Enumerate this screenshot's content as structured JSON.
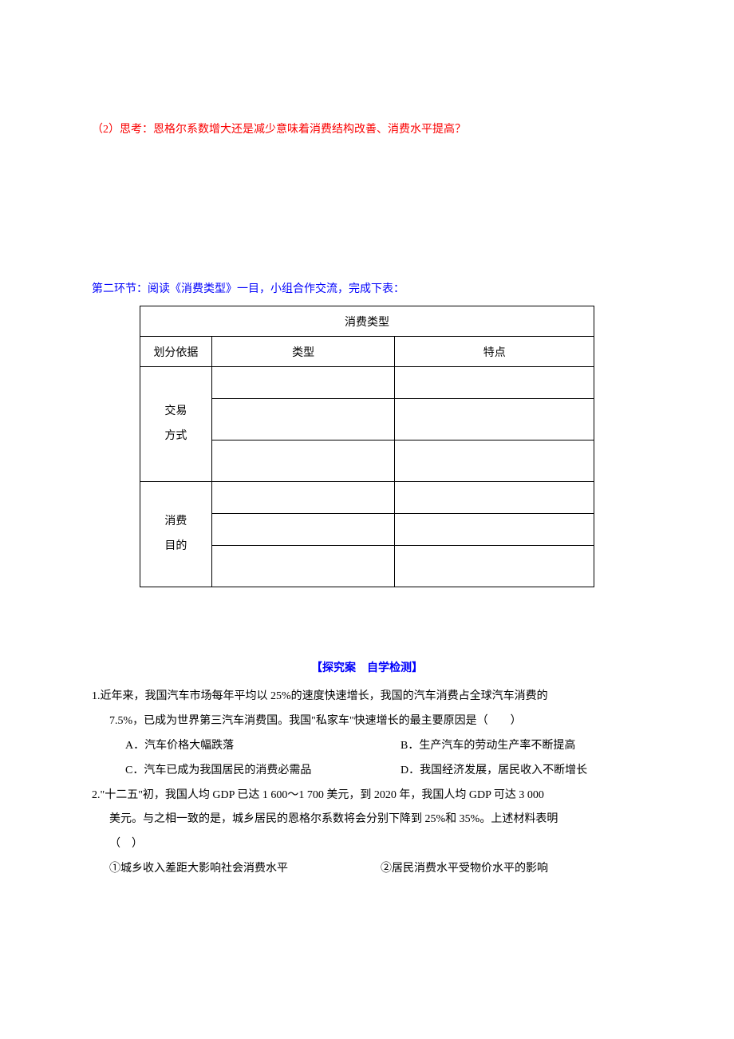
{
  "q1_part2": "（2）思考：恩格尔系数增大还是减少意味着消费结构改善、消费水平提高？",
  "section2_header": "第二环节：阅读《消费类型》一目，小组合作交流，完成下表：",
  "table": {
    "title": "消费类型",
    "header_basis": "划分依据",
    "header_type": "类型",
    "header_feature": "特点",
    "row1_basis_line1": "交易",
    "row1_basis_line2": "方式",
    "row2_basis_line1": "消费",
    "row2_basis_line2": "目的"
  },
  "inquiry_title": "【探究案　自学检测】",
  "q1": {
    "intro_line1": "1.近年来，我国汽车市场每年平均以 25%的速度快速增长，我国的汽车消费占全球汽车消费的",
    "intro_line2": "7.5%，已成为世界第三汽车消费国。我国\"私家车\"快速增长的最主要原因是（　　）",
    "opt_a": "A．汽车价格大幅跌落",
    "opt_b": "B．生产汽车的劳动生产率不断提高",
    "opt_c": "C．汽车已成为我国居民的消费必需品",
    "opt_d": "D．我国经济发展，居民收入不断增长"
  },
  "q2": {
    "intro_line1": "2.\"十二五\"初，我国人均 GDP 已达 1 600～1 700 美元，到 2020 年，我国人均 GDP 可达 3 000",
    "intro_line2": "美元。与之相一致的是，城乡居民的恩格尔系数将会分别下降到 25%和 35%。上述材料表明",
    "intro_line3": "（　）",
    "circ1": "①城乡收入差距大影响社会消费水平",
    "circ2": "②居民消费水平受物价水平的影响"
  }
}
